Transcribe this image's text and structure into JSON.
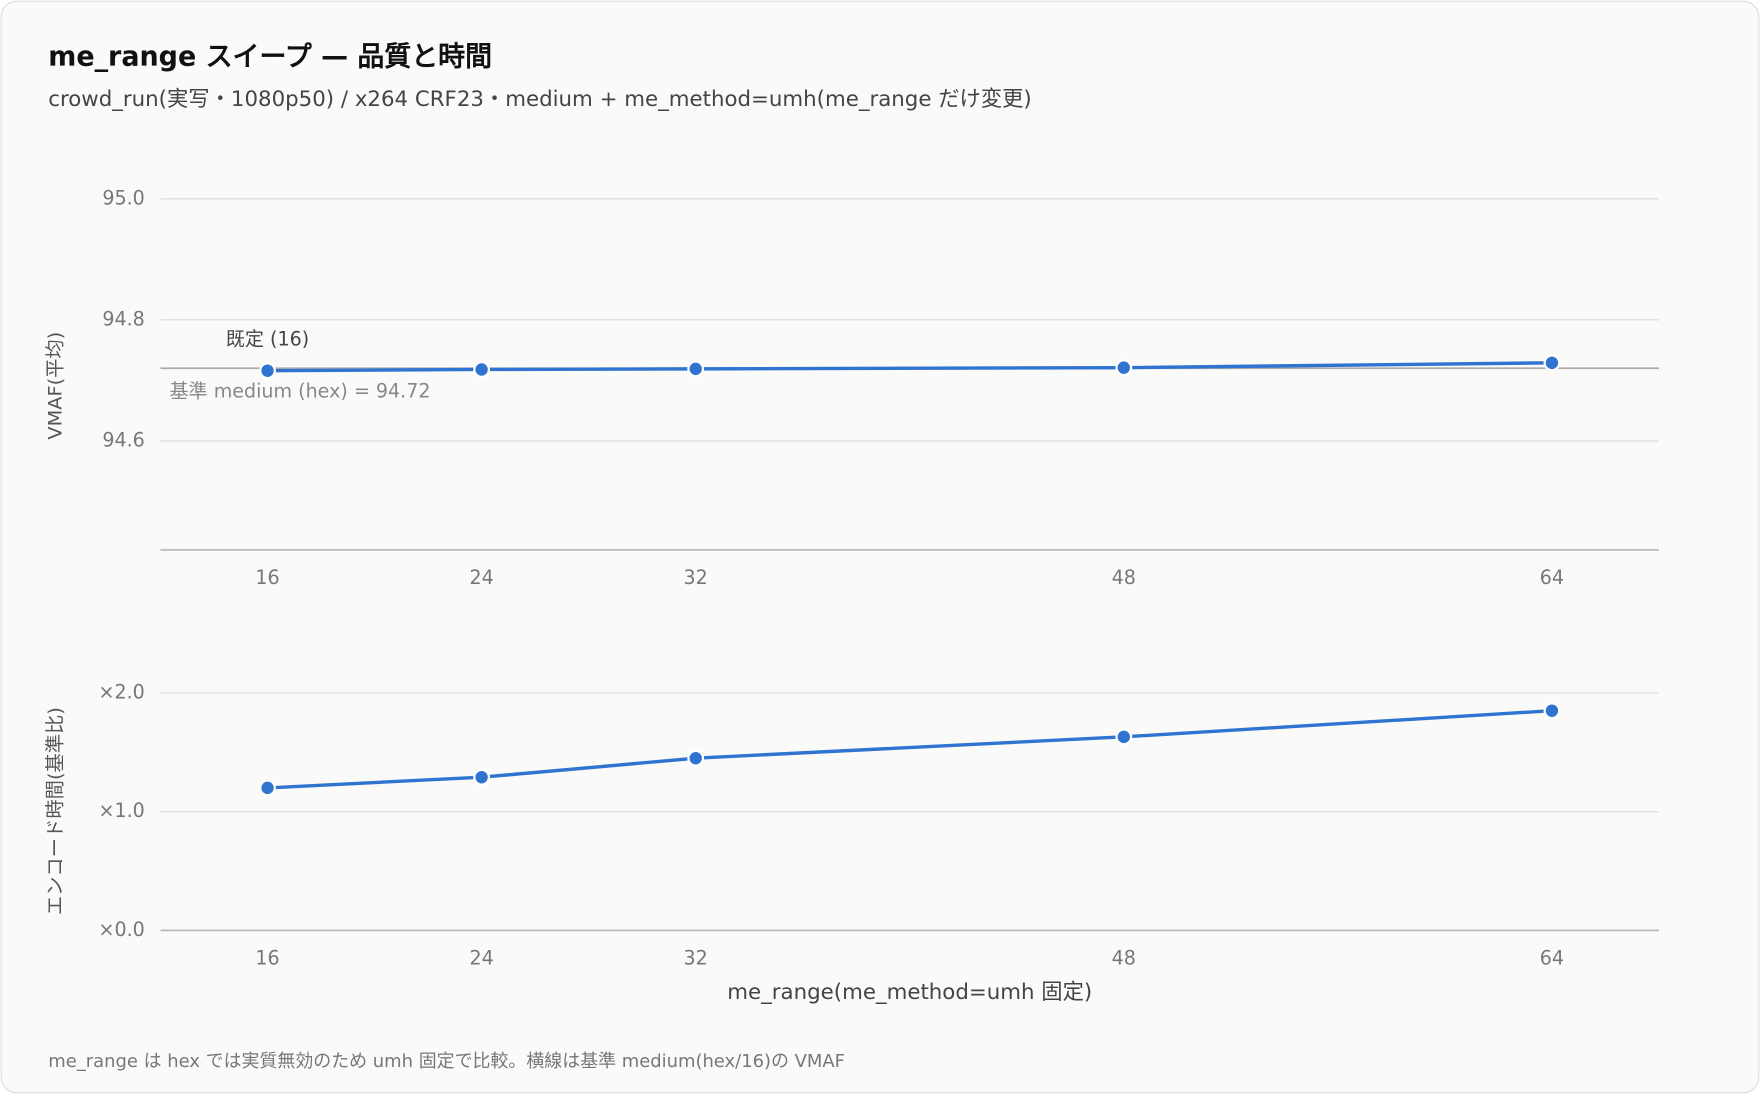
{
  "title": "me_range スイープ — 品質と時間",
  "subtitle": "crowd_run(実写・1080p50) / x264 CRF23・medium + me_method=umh(me_range だけ変更)",
  "footnote": "me_range は hex では実質無効のため umh 固定で比較。横線は基準 medium(hex/16)の VMAF",
  "chart_data": [
    {
      "type": "line",
      "ylabel": "VMAF(平均)",
      "x": [
        16,
        24,
        32,
        48,
        64
      ],
      "series": [
        {
          "color": "#2f74d0",
          "values": [
            94.716,
            94.718,
            94.719,
            94.721,
            94.729
          ]
        }
      ],
      "xlim": [
        12,
        68
      ],
      "xticks": [
        16,
        24,
        32,
        48,
        64
      ],
      "ylim": [
        94.42,
        95.0
      ],
      "yticks": [
        {
          "value": 94.6,
          "label": "94.6"
        },
        {
          "value": 94.8,
          "label": "94.8"
        },
        {
          "value": 95,
          "label": "95.0"
        }
      ],
      "grid": true,
      "baseline": {
        "value": 94.72,
        "label": "基準 medium (hex) = 94.72"
      },
      "annotation": "既定 (16)"
    },
    {
      "type": "line",
      "ylabel": "エンコード時間(基準比)",
      "xlabel": "me_range(me_method=umh 固定)",
      "x": [
        16,
        24,
        32,
        48,
        64
      ],
      "series": [
        {
          "color": "#2f74d0",
          "values": [
            1.2,
            1.29,
            1.45,
            1.63,
            1.85
          ]
        }
      ],
      "xlim": [
        12,
        68
      ],
      "xticks": [
        16,
        24,
        32,
        48,
        64
      ],
      "ylim": [
        0,
        2.2
      ],
      "yticks": [
        {
          "value": 0,
          "label": "×0.0"
        },
        {
          "value": 1,
          "label": "×1.0"
        },
        {
          "value": 2,
          "label": "×2.0"
        }
      ],
      "grid": true
    }
  ]
}
